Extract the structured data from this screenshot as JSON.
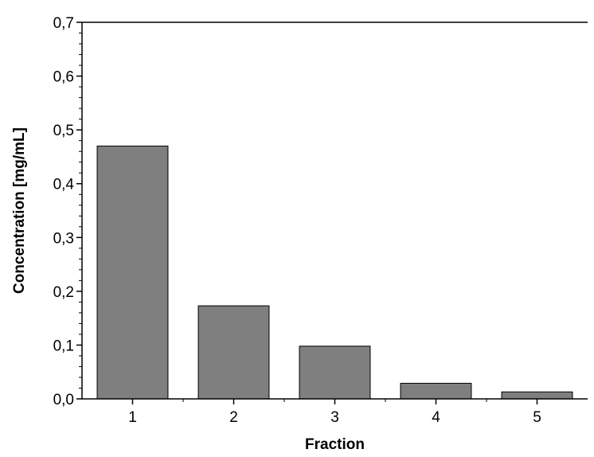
{
  "chart_data": {
    "type": "bar",
    "title": "",
    "xlabel": "Fraction",
    "ylabel": "Concentration [mg/mL]",
    "categories": [
      "1",
      "2",
      "3",
      "4",
      "5"
    ],
    "values": [
      0.47,
      0.173,
      0.098,
      0.029,
      0.013
    ],
    "ylim": [
      0.0,
      0.7
    ],
    "y_ticks": [
      "0,0",
      "0,1",
      "0,2",
      "0,3",
      "0,4",
      "0,5",
      "0,6",
      "0,7"
    ],
    "y_tick_values": [
      0.0,
      0.1,
      0.2,
      0.3,
      0.4,
      0.5,
      0.6,
      0.7
    ],
    "grid": false,
    "legend": "none",
    "colors": {
      "bar_fill": "#7f7f7f",
      "bar_stroke": "#000000",
      "axis": "#000000"
    }
  }
}
